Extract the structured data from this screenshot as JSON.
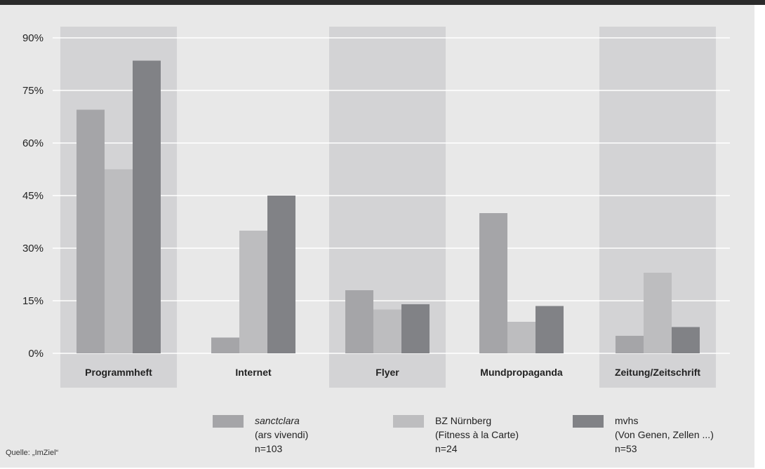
{
  "chart_data": {
    "type": "bar",
    "title": "",
    "xlabel": "",
    "ylabel": "",
    "ylim": [
      0,
      90
    ],
    "yticks": [
      "0%",
      "15%",
      "30%",
      "45%",
      "60%",
      "75%",
      "90%"
    ],
    "ytick_values": [
      0,
      15,
      30,
      45,
      60,
      75,
      90
    ],
    "grid": true,
    "categories": [
      "Programmheft",
      "Internet",
      "Flyer",
      "Mundpropaganda",
      "Zeitung/Zeitschrift"
    ],
    "highlighted_categories": [
      0,
      2,
      4
    ],
    "series": [
      {
        "name": "sanctclara",
        "name_sub": "(ars vivendi)",
        "n": "n=103",
        "color": "#a5a5a8",
        "values": [
          69.5,
          4.5,
          18,
          40,
          5
        ]
      },
      {
        "name": "BZ Nürnberg",
        "name_sub": "(Fitness à la Carte)",
        "n": "n=24",
        "color": "#bdbdbf",
        "values": [
          52.5,
          35,
          12.5,
          9,
          23
        ]
      },
      {
        "name": "mvhs",
        "name_sub": "(Von Genen, Zellen ...)",
        "n": "n=53",
        "color": "#818286",
        "values": [
          83.5,
          45,
          14,
          13.5,
          7.5
        ]
      }
    ],
    "legend_position": "bottom",
    "source": "Quelle: „ImZiel“"
  },
  "colors": {
    "panel": "#e8e8e8",
    "band": "#d3d3d5",
    "gridline": "#ffffff",
    "axis_text": "#222222"
  }
}
